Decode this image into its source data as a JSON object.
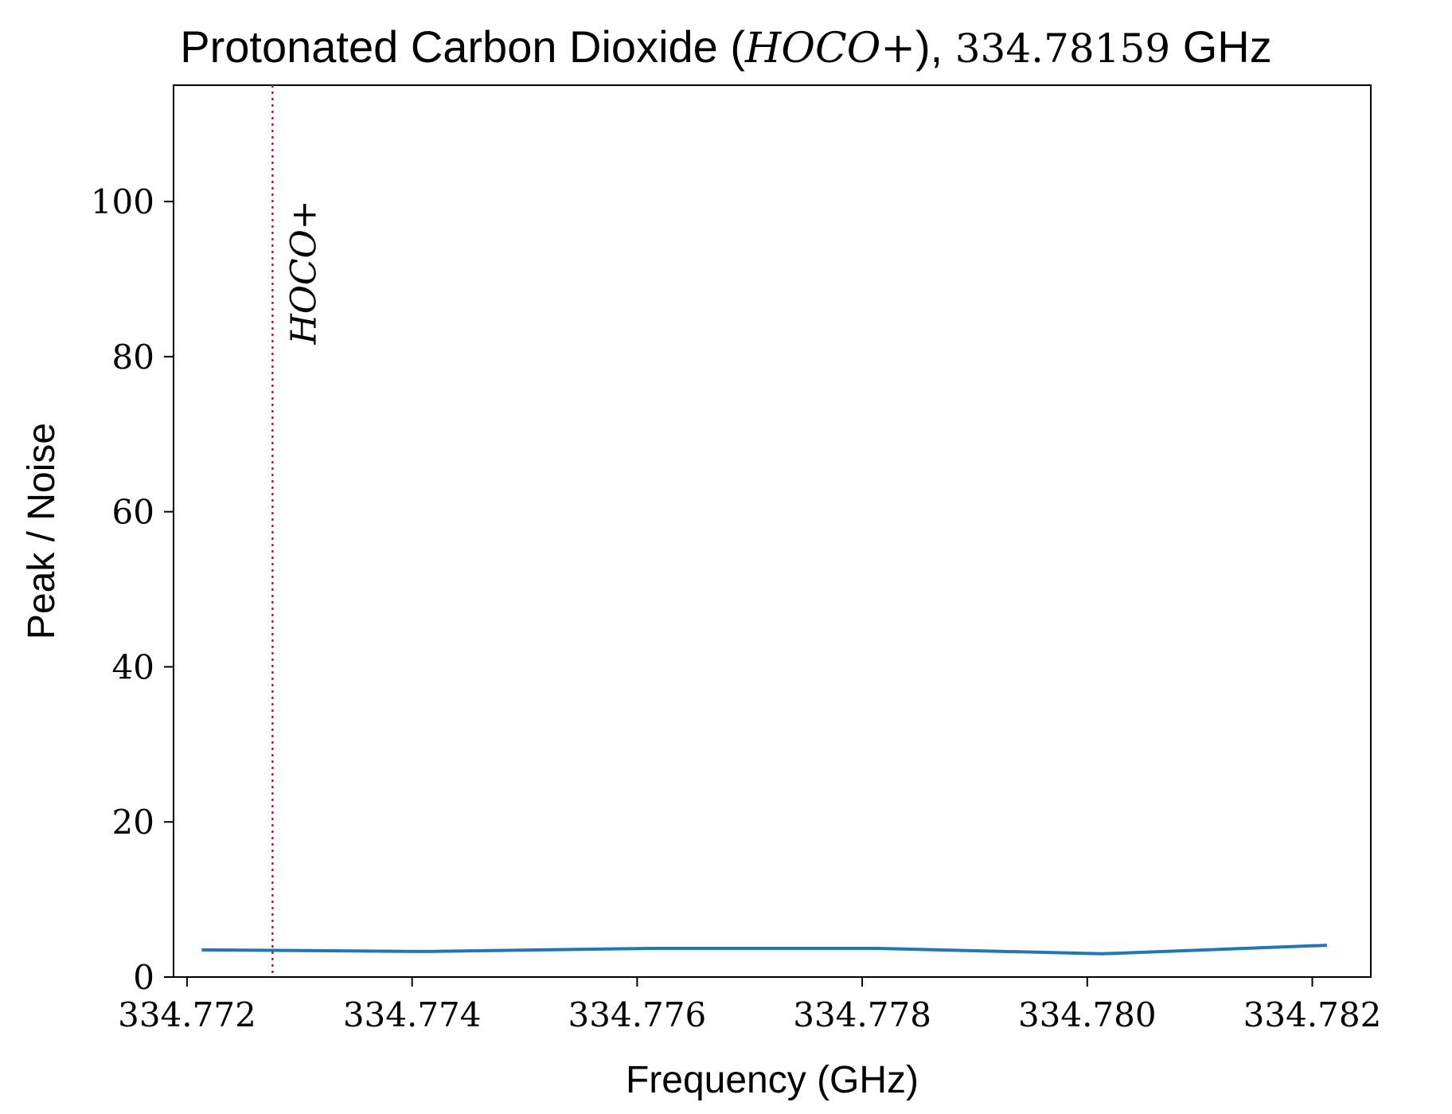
{
  "chart_data": {
    "type": "line",
    "title": {
      "prefix": "Protonated Carbon Dioxide (",
      "species": "HOCO+",
      "middle": "), ",
      "frequency": "334.78159",
      "suffix": " GHz"
    },
    "xlabel": "Frequency (GHz)",
    "ylabel": "Peak / Noise",
    "xlim": [
      334.77188,
      334.78252
    ],
    "ylim": [
      0,
      115
    ],
    "xticks": [
      334.772,
      334.774,
      334.776,
      334.778,
      334.78,
      334.782
    ],
    "xtick_labels": [
      "334.772",
      "334.774",
      "334.776",
      "334.778",
      "334.780",
      "334.782"
    ],
    "yticks": [
      0,
      20,
      40,
      60,
      80,
      100
    ],
    "ytick_labels": [
      "0",
      "20",
      "40",
      "60",
      "80",
      "100"
    ],
    "grid": false,
    "series": [
      {
        "color": "#1f77b4",
        "x": [
          334.77213,
          334.77413,
          334.77613,
          334.77813,
          334.78013,
          334.78213
        ],
        "y": [
          3.5,
          3.3,
          3.7,
          3.7,
          3.0,
          4.1
        ]
      }
    ],
    "annotations": [
      {
        "type": "vline",
        "x": 334.77276,
        "color": "#ff0000",
        "style": "dotted",
        "label": "HOCO+"
      }
    ]
  }
}
